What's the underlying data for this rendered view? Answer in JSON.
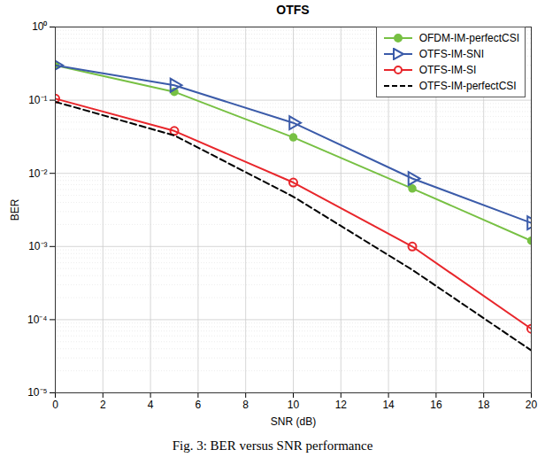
{
  "chart_data": {
    "type": "line",
    "title": "OTFS",
    "caption": "Fig. 3: BER versus SNR performance",
    "x_label": "SNR (dB)",
    "y_label": "BER",
    "x": [
      0,
      5,
      10,
      15,
      20
    ],
    "series": [
      {
        "name": "OFDM-IM-perfectCSI",
        "color": "#77c043",
        "marker": "circle",
        "line_style": "solid",
        "values": [
          0.3,
          0.13,
          0.031,
          0.0062,
          0.0012
        ]
      },
      {
        "name": "OTFS-IM-SNI",
        "color": "#3b5ba9",
        "marker": "triangle-right",
        "line_style": "solid",
        "values": [
          0.3,
          0.16,
          0.049,
          0.0085,
          0.0021
        ]
      },
      {
        "name": "OTFS-IM-SI",
        "color": "#e8262b",
        "marker": "circle-open",
        "line_style": "solid",
        "values": [
          0.105,
          0.038,
          0.0075,
          0.001,
          7.5e-05
        ]
      },
      {
        "name": "OTFS-IM-perfectCSI",
        "color": "#000000",
        "marker": "none",
        "line_style": "dashed",
        "values": [
          0.095,
          0.033,
          0.0048,
          0.00048,
          3.8e-05
        ]
      }
    ],
    "xlim": [
      0,
      20
    ],
    "xticks": [
      0,
      2,
      4,
      6,
      8,
      10,
      12,
      14,
      16,
      18,
      20
    ],
    "ylim": [
      1e-05,
      1
    ],
    "yticks": [
      {
        "value": 1e-05,
        "label": "10⁻⁵"
      },
      {
        "value": 0.0001,
        "label": "10⁻⁴"
      },
      {
        "value": 0.001,
        "label": "10⁻³"
      },
      {
        "value": 0.01,
        "label": "10⁻²"
      },
      {
        "value": 0.1,
        "label": "10⁻¹"
      },
      {
        "value": 1,
        "label": "10⁰"
      }
    ],
    "log": "y",
    "grid": true,
    "legend": "top-right"
  }
}
